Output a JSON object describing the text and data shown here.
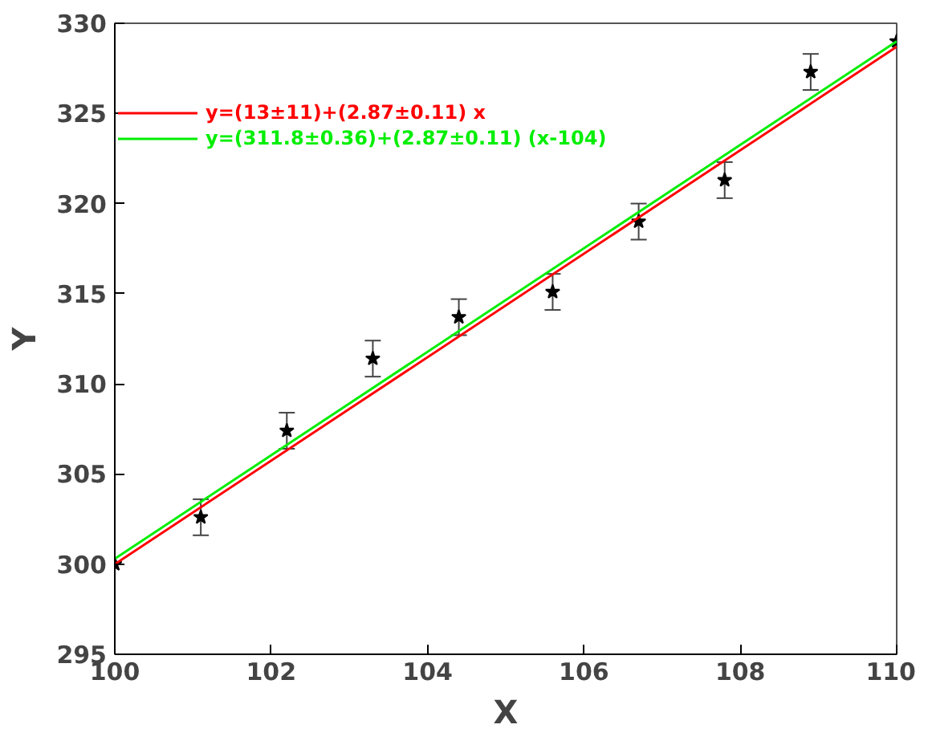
{
  "chart_data": {
    "type": "scatter",
    "xlabel": "X",
    "ylabel": "Y",
    "xlim": [
      100,
      110
    ],
    "ylim": [
      295,
      330
    ],
    "xticks": [
      100,
      102,
      104,
      106,
      108,
      110
    ],
    "yticks": [
      295,
      300,
      305,
      310,
      315,
      320,
      325,
      330
    ],
    "grid": false,
    "legend": "top left",
    "series": [
      {
        "marker": "star",
        "color": "#000000",
        "x": [
          100,
          101.1,
          102.2,
          103.3,
          104.4,
          105.6,
          106.7,
          107.8,
          108.9,
          110
        ],
        "values": [
          300,
          302.6,
          307.4,
          311.4,
          313.7,
          315.1,
          319.0,
          321.3,
          327.3,
          329
        ],
        "errors": [
          null,
          1,
          1,
          1,
          1,
          1,
          1,
          1,
          1,
          null
        ]
      },
      {
        "type": "line",
        "name": "y=(13±11)+(2.87±0.11) x",
        "color": "#ff0000",
        "x": [
          100,
          110
        ],
        "values": [
          300.0,
          328.7
        ]
      },
      {
        "type": "line",
        "name": "y=(311.8±0.36)+(2.87±0.11) (x-104)",
        "color": "#00ee00",
        "x": [
          100,
          110
        ],
        "values": [
          300.3,
          329.0
        ]
      }
    ]
  }
}
